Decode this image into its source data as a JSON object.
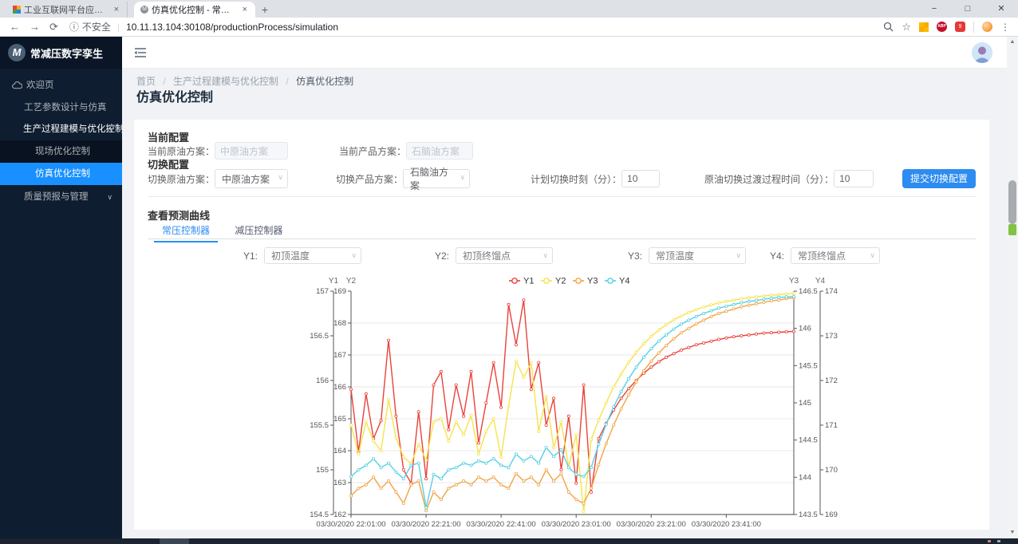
{
  "browser": {
    "tabs": [
      {
        "title": "工业互联网平台应用商店"
      },
      {
        "title": "仿真优化控制 - 常减压数字孪生"
      }
    ],
    "tab_close": "×",
    "new_tab_label": "+",
    "window_controls": {
      "min": "−",
      "max": "□",
      "close": "✕"
    },
    "nav": {
      "back": "←",
      "forward": "→",
      "reload": "⟳"
    },
    "security_icon": "ⓘ",
    "security_label": "不安全",
    "security_sep": "|",
    "url": "10.11.13.104:30108/productionProcess/simulation",
    "menu_dots": "⋮",
    "logo_letter_small": "M"
  },
  "scrollbar": {
    "up": "▲",
    "down": "▼"
  },
  "sidebar": {
    "logo_letter": "M",
    "logo_text": "常减压数字孪生",
    "items": [
      {
        "label": "欢迎页"
      },
      {
        "label": "工艺参数设计与仿真"
      },
      {
        "label": "生产过程建模与优化控制",
        "arrow": "∧"
      },
      {
        "label": "现场优化控制"
      },
      {
        "label": "仿真优化控制"
      },
      {
        "label": "质量预报与管理",
        "arrow": "∨"
      }
    ]
  },
  "breadcrumb": {
    "items": [
      "首页",
      "生产过程建模与优化控制",
      "仿真优化控制"
    ],
    "sep": "/"
  },
  "page_title": "仿真优化控制",
  "ui": {
    "select_arrow": "∨"
  },
  "config": {
    "current_section_label": "当前配置",
    "current_crude_label": "当前原油方案：",
    "current_crude_value": "中原油方案",
    "current_product_label": "当前产品方案：",
    "current_product_value": "石脑油方案",
    "switch_section_label": "切换配置",
    "switch_crude_label": "切换原油方案：",
    "switch_crude_value": "中原油方案",
    "switch_product_label": "切换产品方案：",
    "switch_product_value": "石脑油方案",
    "plan_time_label": "计划切换时刻（分）：",
    "plan_time_value": "10",
    "transition_label": "原油切换过渡过程时间（分）：",
    "transition_value": "10",
    "submit_label": "提交切换配置"
  },
  "curves": {
    "section_label": "查看预测曲线",
    "tabs": [
      {
        "label": "常压控制器",
        "active": true
      },
      {
        "label": "减压控制器",
        "active": false
      }
    ],
    "selectors": [
      {
        "label": "Y1:",
        "value": "初顶温度"
      },
      {
        "label": "Y2:",
        "value": "初顶终馏点"
      },
      {
        "label": "Y3:",
        "value": "常顶温度"
      },
      {
        "label": "Y4:",
        "value": "常顶终馏点"
      }
    ]
  },
  "colors": {
    "accent": "#1890ff",
    "button": "#2d8cf0",
    "tab_active": "#2d8cf0"
  },
  "chart_data": {
    "type": "line",
    "legend_position": "top",
    "grid": true,
    "x_labels": [
      "03/30/2020 22:01:00",
      "03/30/2020 22:21:00",
      "03/30/2020 22:41:00",
      "03/30/2020 23:01:00",
      "03/30/2020 23:21:00",
      "03/30/2020 23:41:00"
    ],
    "x_label_interval_min": 20,
    "x_minutes_per_point": 2,
    "x_total_min": 118,
    "axes": [
      {
        "name": "Y1",
        "side": "left",
        "min": 154.5,
        "max": 157,
        "ticks": [
          "157",
          "156.5",
          "156",
          "155.5",
          "155",
          "154.5"
        ]
      },
      {
        "name": "Y2",
        "side": "left",
        "min": 162,
        "max": 169,
        "ticks": [
          "169",
          "168",
          "167",
          "166",
          "165",
          "164",
          "163",
          "162"
        ]
      },
      {
        "name": "Y3",
        "side": "right",
        "min": 143.5,
        "max": 146.5,
        "ticks": [
          "146.5",
          "146",
          "145.5",
          "145",
          "144.5",
          "144",
          "143.5"
        ]
      },
      {
        "name": "Y4",
        "side": "right",
        "min": 169,
        "max": 174,
        "ticks": [
          "174",
          "173",
          "172",
          "171",
          "170",
          "169"
        ]
      }
    ],
    "series": [
      {
        "name": "Y1",
        "axis": 0,
        "color": "#e9423b",
        "values": [
          155.9,
          155.2,
          155.85,
          155.35,
          155.55,
          156.45,
          155.6,
          155.0,
          154.85,
          155.65,
          154.9,
          155.95,
          156.1,
          155.45,
          155.95,
          155.6,
          156.1,
          155.3,
          155.75,
          156.2,
          155.7,
          156.85,
          156.4,
          156.9,
          155.9,
          156.2,
          155.5,
          155.8,
          155.0,
          155.6,
          154.85,
          155.95,
          154.75,
          155.35,
          155.52,
          155.67,
          155.8,
          155.91,
          156.0,
          156.08,
          156.15,
          156.21,
          156.26,
          156.3,
          156.34,
          156.37,
          156.4,
          156.42,
          156.44,
          156.46,
          156.475,
          156.49,
          156.5,
          156.51,
          156.52,
          156.53,
          156.535,
          156.54,
          156.545,
          156.55
        ]
      },
      {
        "name": "Y2",
        "axis": 1,
        "color": "#f6e34b",
        "values": [
          164.8,
          163.9,
          164.9,
          164.3,
          164.0,
          165.6,
          164.4,
          163.8,
          163.6,
          164.2,
          163.7,
          164.9,
          165.0,
          164.3,
          164.9,
          164.5,
          165.1,
          163.9,
          164.6,
          165.0,
          163.8,
          165.4,
          166.8,
          166.3,
          166.75,
          164.6,
          165.7,
          164.1,
          164.9,
          163.5,
          164.5,
          162.1,
          164.35,
          164.96,
          165.5,
          166.0,
          166.4,
          166.77,
          167.08,
          167.35,
          167.58,
          167.78,
          167.95,
          168.1,
          168.22,
          168.33,
          168.42,
          168.5,
          168.57,
          168.63,
          168.68,
          168.72,
          168.76,
          168.79,
          168.82,
          168.85,
          168.87,
          168.89,
          168.91,
          168.93
        ]
      },
      {
        "name": "Y3",
        "axis": 2,
        "color": "#f2a444",
        "values": [
          143.75,
          143.85,
          143.9,
          144.0,
          143.85,
          143.95,
          143.8,
          143.65,
          143.9,
          143.95,
          143.55,
          143.8,
          143.7,
          143.85,
          143.9,
          143.95,
          143.9,
          144.0,
          143.95,
          144.0,
          143.9,
          143.85,
          144.05,
          143.95,
          144.0,
          143.9,
          144.1,
          143.95,
          144.05,
          143.8,
          143.7,
          143.65,
          143.85,
          144.17,
          144.45,
          144.7,
          144.92,
          145.11,
          145.28,
          145.43,
          145.56,
          145.67,
          145.77,
          145.86,
          145.94,
          146.0,
          146.06,
          146.11,
          146.16,
          146.2,
          146.23,
          146.26,
          146.29,
          146.31,
          146.33,
          146.35,
          146.37,
          146.38,
          146.4,
          146.41
        ]
      },
      {
        "name": "Y4",
        "axis": 3,
        "color": "#55d1e4",
        "values": [
          169.85,
          170.0,
          170.1,
          170.25,
          170.05,
          170.15,
          169.95,
          169.8,
          170.1,
          170.15,
          169.15,
          169.9,
          169.8,
          170.0,
          170.05,
          170.15,
          170.1,
          170.2,
          170.15,
          170.25,
          170.1,
          170.05,
          170.35,
          170.2,
          170.3,
          170.15,
          170.5,
          170.3,
          170.45,
          170.05,
          169.9,
          169.85,
          170.05,
          170.57,
          171.02,
          171.41,
          171.75,
          172.04,
          172.3,
          172.52,
          172.71,
          172.88,
          173.02,
          173.15,
          173.26,
          173.35,
          173.43,
          173.5,
          173.56,
          173.62,
          173.66,
          173.7,
          173.74,
          173.77,
          173.79,
          173.82,
          173.84,
          173.86,
          173.87,
          173.88
        ]
      }
    ]
  }
}
